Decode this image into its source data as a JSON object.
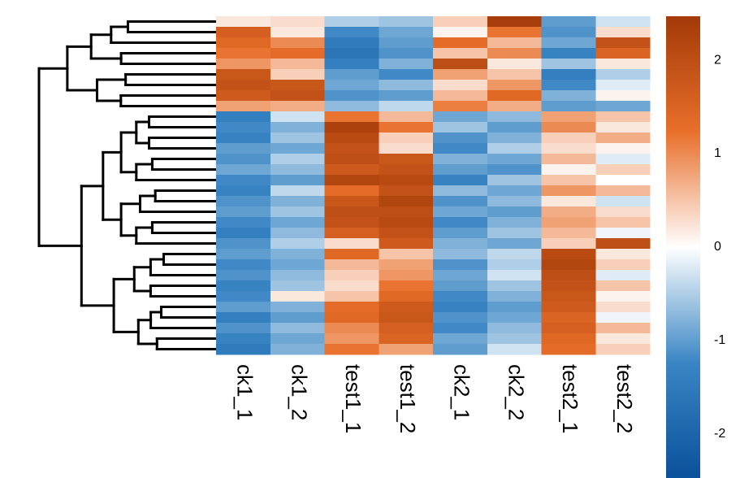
{
  "chart_data": {
    "type": "heatmap",
    "categories": [
      "ck1_1",
      "ck1_2",
      "test1_1",
      "test1_2",
      "ck2_1",
      "ck2_2",
      "test2_1",
      "test2_2"
    ],
    "values": [
      [
        0.2,
        0.3,
        -0.5,
        -0.6,
        0.4,
        2.4,
        -1.0,
        -0.3
      ],
      [
        1.6,
        0.2,
        -1.2,
        -0.9,
        0.1,
        1.2,
        -1.1,
        0.3
      ],
      [
        1.4,
        1.0,
        -1.5,
        -1.0,
        1.3,
        0.6,
        -0.9,
        1.9
      ],
      [
        1.2,
        1.3,
        -1.6,
        -1.1,
        0.5,
        1.0,
        -1.3,
        1.5
      ],
      [
        0.9,
        0.6,
        -1.4,
        -0.8,
        2.0,
        0.2,
        -0.6,
        0.2
      ],
      [
        1.8,
        0.4,
        -1.0,
        -1.2,
        0.8,
        0.5,
        -1.4,
        -0.5
      ],
      [
        1.9,
        1.8,
        -0.9,
        -0.7,
        0.3,
        0.9,
        -1.2,
        -0.2
      ],
      [
        1.7,
        1.9,
        -1.1,
        -1.0,
        0.6,
        1.4,
        -0.8,
        0.1
      ],
      [
        0.8,
        0.7,
        -0.7,
        -0.4,
        1.1,
        0.7,
        -1.0,
        -0.9
      ],
      [
        -1.4,
        -0.3,
        1.2,
        0.6,
        -0.9,
        -0.7,
        0.8,
        0.5
      ],
      [
        -1.2,
        -0.8,
        2.3,
        1.2,
        -0.6,
        -1.0,
        1.0,
        0.2
      ],
      [
        -1.3,
        -0.6,
        2.1,
        0.4,
        -1.1,
        -0.8,
        0.4,
        0.7
      ],
      [
        -1.0,
        -0.9,
        1.9,
        0.3,
        -1.2,
        -0.5,
        0.3,
        0.1
      ],
      [
        -1.1,
        -0.5,
        2.0,
        1.8,
        -0.8,
        -0.9,
        0.6,
        -0.2
      ],
      [
        -0.9,
        -0.7,
        1.7,
        1.9,
        -1.0,
        -1.1,
        0.1,
        0.4
      ],
      [
        -1.2,
        -1.0,
        2.2,
        2.1,
        -1.3,
        -0.6,
        0.5,
        0.0
      ],
      [
        -1.3,
        -0.4,
        1.3,
        1.9,
        -0.7,
        -0.9,
        0.9,
        0.6
      ],
      [
        -1.1,
        -0.8,
        1.8,
        2.2,
        -1.1,
        -0.7,
        0.2,
        -0.3
      ],
      [
        -1.0,
        -0.6,
        2.0,
        2.0,
        -0.9,
        -1.0,
        0.7,
        0.3
      ],
      [
        -1.2,
        -0.9,
        1.9,
        2.1,
        -1.2,
        -0.8,
        0.8,
        0.5
      ],
      [
        -1.4,
        -0.7,
        1.6,
        1.9,
        -1.0,
        -0.6,
        0.6,
        -0.1
      ],
      [
        -1.1,
        -0.5,
        0.3,
        1.7,
        -0.8,
        -0.9,
        0.4,
        2.0
      ],
      [
        -1.0,
        -0.8,
        1.4,
        0.5,
        -0.7,
        -0.4,
        2.1,
        0.2
      ],
      [
        -1.2,
        -0.9,
        0.6,
        0.8,
        -1.1,
        -0.5,
        2.2,
        0.4
      ],
      [
        -1.1,
        -0.7,
        0.4,
        0.9,
        -0.9,
        -0.3,
        2.0,
        -0.2
      ],
      [
        -1.3,
        -0.6,
        0.3,
        1.2,
        -1.0,
        -0.6,
        1.9,
        0.5
      ],
      [
        -1.2,
        0.2,
        0.5,
        1.4,
        -1.2,
        -0.8,
        1.8,
        0.1
      ],
      [
        -1.0,
        -0.8,
        1.3,
        1.7,
        -1.3,
        -1.0,
        1.7,
        0.3
      ],
      [
        -1.4,
        -1.0,
        1.4,
        1.8,
        -1.1,
        -0.9,
        1.5,
        -0.1
      ],
      [
        -1.1,
        -0.7,
        1.0,
        1.6,
        -1.2,
        -0.7,
        1.6,
        0.6
      ],
      [
        -1.3,
        -0.9,
        0.9,
        1.5,
        -0.9,
        -0.6,
        1.4,
        0.2
      ],
      [
        -1.5,
        -0.8,
        1.2,
        0.8,
        -1.0,
        -0.3,
        1.3,
        0.4
      ]
    ],
    "clim": [
      -2.47,
      2.47
    ],
    "cticks": [
      2,
      1,
      0,
      -1,
      -2
    ],
    "colors": [
      "#0a519b",
      "#3a86c4",
      "#ffffff",
      "#e86f2a",
      "#a33a08"
    ],
    "row_dendrogram": true
  }
}
